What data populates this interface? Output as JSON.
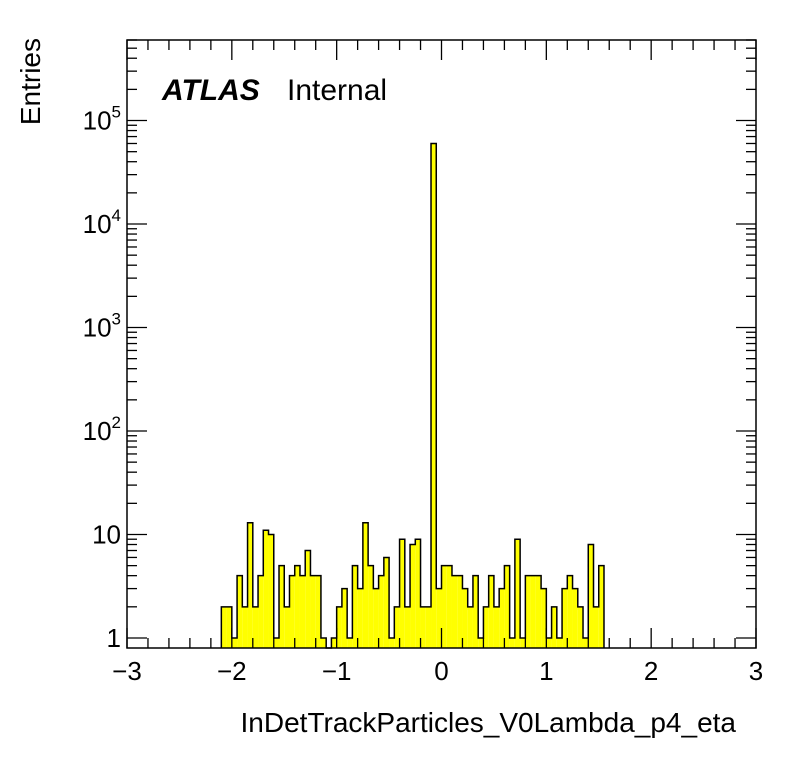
{
  "chart_data": {
    "type": "histogram",
    "xlabel": "InDetTrackParticles_V0Lambda_p4_eta",
    "ylabel": "Entries",
    "label_bold": "ATLAS",
    "label_normal": "Internal",
    "xlim": [
      -3,
      3
    ],
    "ylim": [
      0.8,
      600000
    ],
    "yscale": "log",
    "bar_color": "#ffff00",
    "x_ticks": [
      "−3",
      "−2",
      "−1",
      "0",
      "1",
      "2",
      "3"
    ],
    "y_ticks": [
      "1",
      "10",
      "10^2",
      "10^3",
      "10^4",
      "10^5"
    ],
    "bin_width": 0.05,
    "bins": [
      {
        "x": -2.1,
        "y": 2
      },
      {
        "x": -2.05,
        "y": 2
      },
      {
        "x": -2.0,
        "y": 1
      },
      {
        "x": -1.95,
        "y": 4
      },
      {
        "x": -1.9,
        "y": 2
      },
      {
        "x": -1.85,
        "y": 13
      },
      {
        "x": -1.8,
        "y": 2
      },
      {
        "x": -1.75,
        "y": 4
      },
      {
        "x": -1.7,
        "y": 11
      },
      {
        "x": -1.65,
        "y": 10
      },
      {
        "x": -1.6,
        "y": 1
      },
      {
        "x": -1.55,
        "y": 5
      },
      {
        "x": -1.5,
        "y": 2
      },
      {
        "x": -1.45,
        "y": 4
      },
      {
        "x": -1.4,
        "y": 5
      },
      {
        "x": -1.35,
        "y": 4
      },
      {
        "x": -1.3,
        "y": 7
      },
      {
        "x": -1.25,
        "y": 4
      },
      {
        "x": -1.2,
        "y": 4
      },
      {
        "x": -1.15,
        "y": 1
      },
      {
        "x": -1.1,
        "y": 0
      },
      {
        "x": -1.05,
        "y": 1
      },
      {
        "x": -1.0,
        "y": 2
      },
      {
        "x": -0.95,
        "y": 3
      },
      {
        "x": -0.9,
        "y": 1
      },
      {
        "x": -0.85,
        "y": 5
      },
      {
        "x": -0.8,
        "y": 3
      },
      {
        "x": -0.75,
        "y": 13
      },
      {
        "x": -0.7,
        "y": 5
      },
      {
        "x": -0.65,
        "y": 3
      },
      {
        "x": -0.6,
        "y": 4
      },
      {
        "x": -0.55,
        "y": 6
      },
      {
        "x": -0.5,
        "y": 1
      },
      {
        "x": -0.45,
        "y": 2
      },
      {
        "x": -0.4,
        "y": 9
      },
      {
        "x": -0.35,
        "y": 2
      },
      {
        "x": -0.3,
        "y": 8
      },
      {
        "x": -0.25,
        "y": 9
      },
      {
        "x": -0.2,
        "y": 2
      },
      {
        "x": -0.15,
        "y": 2
      },
      {
        "x": -0.1,
        "y": 60000
      },
      {
        "x": -0.05,
        "y": 3
      },
      {
        "x": 0.0,
        "y": 5
      },
      {
        "x": 0.05,
        "y": 5
      },
      {
        "x": 0.1,
        "y": 4
      },
      {
        "x": 0.15,
        "y": 4
      },
      {
        "x": 0.2,
        "y": 3
      },
      {
        "x": 0.25,
        "y": 2
      },
      {
        "x": 0.3,
        "y": 4
      },
      {
        "x": 0.35,
        "y": 1
      },
      {
        "x": 0.4,
        "y": 2
      },
      {
        "x": 0.45,
        "y": 4
      },
      {
        "x": 0.5,
        "y": 2
      },
      {
        "x": 0.55,
        "y": 3
      },
      {
        "x": 0.6,
        "y": 5
      },
      {
        "x": 0.65,
        "y": 1
      },
      {
        "x": 0.7,
        "y": 9
      },
      {
        "x": 0.75,
        "y": 1
      },
      {
        "x": 0.8,
        "y": 4
      },
      {
        "x": 0.85,
        "y": 4
      },
      {
        "x": 0.9,
        "y": 4
      },
      {
        "x": 0.95,
        "y": 3
      },
      {
        "x": 1.0,
        "y": 1
      },
      {
        "x": 1.05,
        "y": 2
      },
      {
        "x": 1.1,
        "y": 1
      },
      {
        "x": 1.15,
        "y": 3
      },
      {
        "x": 1.2,
        "y": 4
      },
      {
        "x": 1.25,
        "y": 3
      },
      {
        "x": 1.3,
        "y": 2
      },
      {
        "x": 1.35,
        "y": 1
      },
      {
        "x": 1.4,
        "y": 8
      },
      {
        "x": 1.45,
        "y": 2
      },
      {
        "x": 1.5,
        "y": 5
      }
    ]
  }
}
